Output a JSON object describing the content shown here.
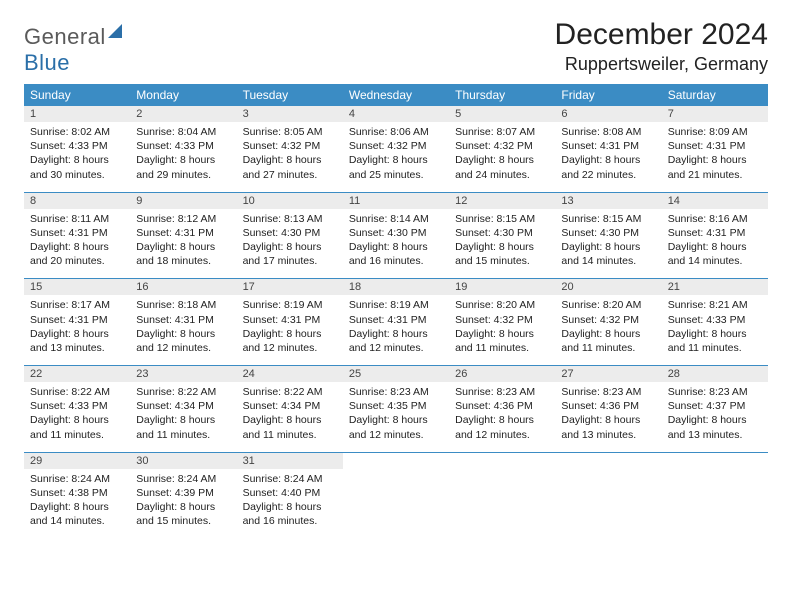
{
  "brand": {
    "part1": "General",
    "part2": "Blue"
  },
  "title": "December 2024",
  "location": "Ruppertsweiler, Germany",
  "colors": {
    "header_bg": "#3b8cc4",
    "daynum_bg": "#ececec",
    "rule": "#3b8cc4",
    "text": "#222222",
    "brand_gray": "#5a5a5a",
    "brand_blue": "#2b6fa8"
  },
  "typography": {
    "title_fontsize": 30,
    "location_fontsize": 18,
    "dow_fontsize": 12,
    "cell_fontsize": 10.5
  },
  "days_of_week": [
    "Sunday",
    "Monday",
    "Tuesday",
    "Wednesday",
    "Thursday",
    "Friday",
    "Saturday"
  ],
  "weeks": [
    [
      {
        "n": "1",
        "sr": "Sunrise: 8:02 AM",
        "ss": "Sunset: 4:33 PM",
        "d1": "Daylight: 8 hours",
        "d2": "and 30 minutes."
      },
      {
        "n": "2",
        "sr": "Sunrise: 8:04 AM",
        "ss": "Sunset: 4:33 PM",
        "d1": "Daylight: 8 hours",
        "d2": "and 29 minutes."
      },
      {
        "n": "3",
        "sr": "Sunrise: 8:05 AM",
        "ss": "Sunset: 4:32 PM",
        "d1": "Daylight: 8 hours",
        "d2": "and 27 minutes."
      },
      {
        "n": "4",
        "sr": "Sunrise: 8:06 AM",
        "ss": "Sunset: 4:32 PM",
        "d1": "Daylight: 8 hours",
        "d2": "and 25 minutes."
      },
      {
        "n": "5",
        "sr": "Sunrise: 8:07 AM",
        "ss": "Sunset: 4:32 PM",
        "d1": "Daylight: 8 hours",
        "d2": "and 24 minutes."
      },
      {
        "n": "6",
        "sr": "Sunrise: 8:08 AM",
        "ss": "Sunset: 4:31 PM",
        "d1": "Daylight: 8 hours",
        "d2": "and 22 minutes."
      },
      {
        "n": "7",
        "sr": "Sunrise: 8:09 AM",
        "ss": "Sunset: 4:31 PM",
        "d1": "Daylight: 8 hours",
        "d2": "and 21 minutes."
      }
    ],
    [
      {
        "n": "8",
        "sr": "Sunrise: 8:11 AM",
        "ss": "Sunset: 4:31 PM",
        "d1": "Daylight: 8 hours",
        "d2": "and 20 minutes."
      },
      {
        "n": "9",
        "sr": "Sunrise: 8:12 AM",
        "ss": "Sunset: 4:31 PM",
        "d1": "Daylight: 8 hours",
        "d2": "and 18 minutes."
      },
      {
        "n": "10",
        "sr": "Sunrise: 8:13 AM",
        "ss": "Sunset: 4:30 PM",
        "d1": "Daylight: 8 hours",
        "d2": "and 17 minutes."
      },
      {
        "n": "11",
        "sr": "Sunrise: 8:14 AM",
        "ss": "Sunset: 4:30 PM",
        "d1": "Daylight: 8 hours",
        "d2": "and 16 minutes."
      },
      {
        "n": "12",
        "sr": "Sunrise: 8:15 AM",
        "ss": "Sunset: 4:30 PM",
        "d1": "Daylight: 8 hours",
        "d2": "and 15 minutes."
      },
      {
        "n": "13",
        "sr": "Sunrise: 8:15 AM",
        "ss": "Sunset: 4:30 PM",
        "d1": "Daylight: 8 hours",
        "d2": "and 14 minutes."
      },
      {
        "n": "14",
        "sr": "Sunrise: 8:16 AM",
        "ss": "Sunset: 4:31 PM",
        "d1": "Daylight: 8 hours",
        "d2": "and 14 minutes."
      }
    ],
    [
      {
        "n": "15",
        "sr": "Sunrise: 8:17 AM",
        "ss": "Sunset: 4:31 PM",
        "d1": "Daylight: 8 hours",
        "d2": "and 13 minutes."
      },
      {
        "n": "16",
        "sr": "Sunrise: 8:18 AM",
        "ss": "Sunset: 4:31 PM",
        "d1": "Daylight: 8 hours",
        "d2": "and 12 minutes."
      },
      {
        "n": "17",
        "sr": "Sunrise: 8:19 AM",
        "ss": "Sunset: 4:31 PM",
        "d1": "Daylight: 8 hours",
        "d2": "and 12 minutes."
      },
      {
        "n": "18",
        "sr": "Sunrise: 8:19 AM",
        "ss": "Sunset: 4:31 PM",
        "d1": "Daylight: 8 hours",
        "d2": "and 12 minutes."
      },
      {
        "n": "19",
        "sr": "Sunrise: 8:20 AM",
        "ss": "Sunset: 4:32 PM",
        "d1": "Daylight: 8 hours",
        "d2": "and 11 minutes."
      },
      {
        "n": "20",
        "sr": "Sunrise: 8:20 AM",
        "ss": "Sunset: 4:32 PM",
        "d1": "Daylight: 8 hours",
        "d2": "and 11 minutes."
      },
      {
        "n": "21",
        "sr": "Sunrise: 8:21 AM",
        "ss": "Sunset: 4:33 PM",
        "d1": "Daylight: 8 hours",
        "d2": "and 11 minutes."
      }
    ],
    [
      {
        "n": "22",
        "sr": "Sunrise: 8:22 AM",
        "ss": "Sunset: 4:33 PM",
        "d1": "Daylight: 8 hours",
        "d2": "and 11 minutes."
      },
      {
        "n": "23",
        "sr": "Sunrise: 8:22 AM",
        "ss": "Sunset: 4:34 PM",
        "d1": "Daylight: 8 hours",
        "d2": "and 11 minutes."
      },
      {
        "n": "24",
        "sr": "Sunrise: 8:22 AM",
        "ss": "Sunset: 4:34 PM",
        "d1": "Daylight: 8 hours",
        "d2": "and 11 minutes."
      },
      {
        "n": "25",
        "sr": "Sunrise: 8:23 AM",
        "ss": "Sunset: 4:35 PM",
        "d1": "Daylight: 8 hours",
        "d2": "and 12 minutes."
      },
      {
        "n": "26",
        "sr": "Sunrise: 8:23 AM",
        "ss": "Sunset: 4:36 PM",
        "d1": "Daylight: 8 hours",
        "d2": "and 12 minutes."
      },
      {
        "n": "27",
        "sr": "Sunrise: 8:23 AM",
        "ss": "Sunset: 4:36 PM",
        "d1": "Daylight: 8 hours",
        "d2": "and 13 minutes."
      },
      {
        "n": "28",
        "sr": "Sunrise: 8:23 AM",
        "ss": "Sunset: 4:37 PM",
        "d1": "Daylight: 8 hours",
        "d2": "and 13 minutes."
      }
    ],
    [
      {
        "n": "29",
        "sr": "Sunrise: 8:24 AM",
        "ss": "Sunset: 4:38 PM",
        "d1": "Daylight: 8 hours",
        "d2": "and 14 minutes."
      },
      {
        "n": "30",
        "sr": "Sunrise: 8:24 AM",
        "ss": "Sunset: 4:39 PM",
        "d1": "Daylight: 8 hours",
        "d2": "and 15 minutes."
      },
      {
        "n": "31",
        "sr": "Sunrise: 8:24 AM",
        "ss": "Sunset: 4:40 PM",
        "d1": "Daylight: 8 hours",
        "d2": "and 16 minutes."
      },
      null,
      null,
      null,
      null
    ]
  ]
}
